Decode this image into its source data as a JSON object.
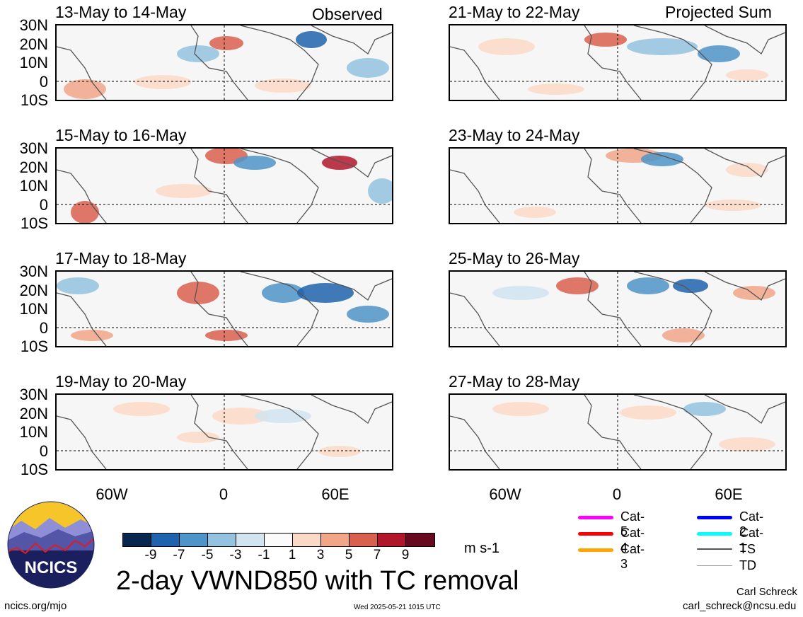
{
  "panels_left": [
    {
      "title": "13-May to 14-May"
    },
    {
      "title": "15-May to 16-May"
    },
    {
      "title": "17-May to 18-May"
    },
    {
      "title": "19-May to 20-May"
    }
  ],
  "panels_right": [
    {
      "title": "21-May to 22-May"
    },
    {
      "title": "23-May to 24-May"
    },
    {
      "title": "25-May to 26-May"
    },
    {
      "title": "27-May to 28-May"
    }
  ],
  "labels": {
    "observed": "Observed",
    "projected": "Projected Sum"
  },
  "lat_ticks": [
    "30N",
    "20N",
    "10N",
    "0",
    "10S"
  ],
  "lon_ticks": [
    "60W",
    "0",
    "60E"
  ],
  "colorbar": {
    "ticks": [
      "-9",
      "-7",
      "-5",
      "-3",
      "-1",
      "1",
      "3",
      "5",
      "7",
      "9"
    ],
    "colors": [
      "#08274f",
      "#1f63ad",
      "#4f94c8",
      "#93c3df",
      "#d1e4f0",
      "#fbfbfb",
      "#fbd9c7",
      "#f1a688",
      "#d9604e",
      "#b0172b",
      "#680a1f"
    ],
    "units": "m s-1"
  },
  "title": "2-day VWND850 with TC removal",
  "logo": {
    "text": "NCICS"
  },
  "footer": {
    "left": "ncics.org/mjo",
    "center": "Wed 2025-05-21 1015 UTC",
    "author": "Carl Schreck",
    "email": "carl_schreck@ncsu.edu"
  },
  "legend": [
    {
      "label": "Cat-5",
      "color": "#ff00ff"
    },
    {
      "label": "Cat-4",
      "color": "#ff0000"
    },
    {
      "label": "Cat-3",
      "color": "#ffa500"
    },
    {
      "label": "Cat-2",
      "color": "#0000ff"
    },
    {
      "label": "Cat-1",
      "color": "#00ffff"
    },
    {
      "label": "TS",
      "color": "#555555"
    },
    {
      "label": "TD",
      "color": "#999999"
    }
  ]
}
